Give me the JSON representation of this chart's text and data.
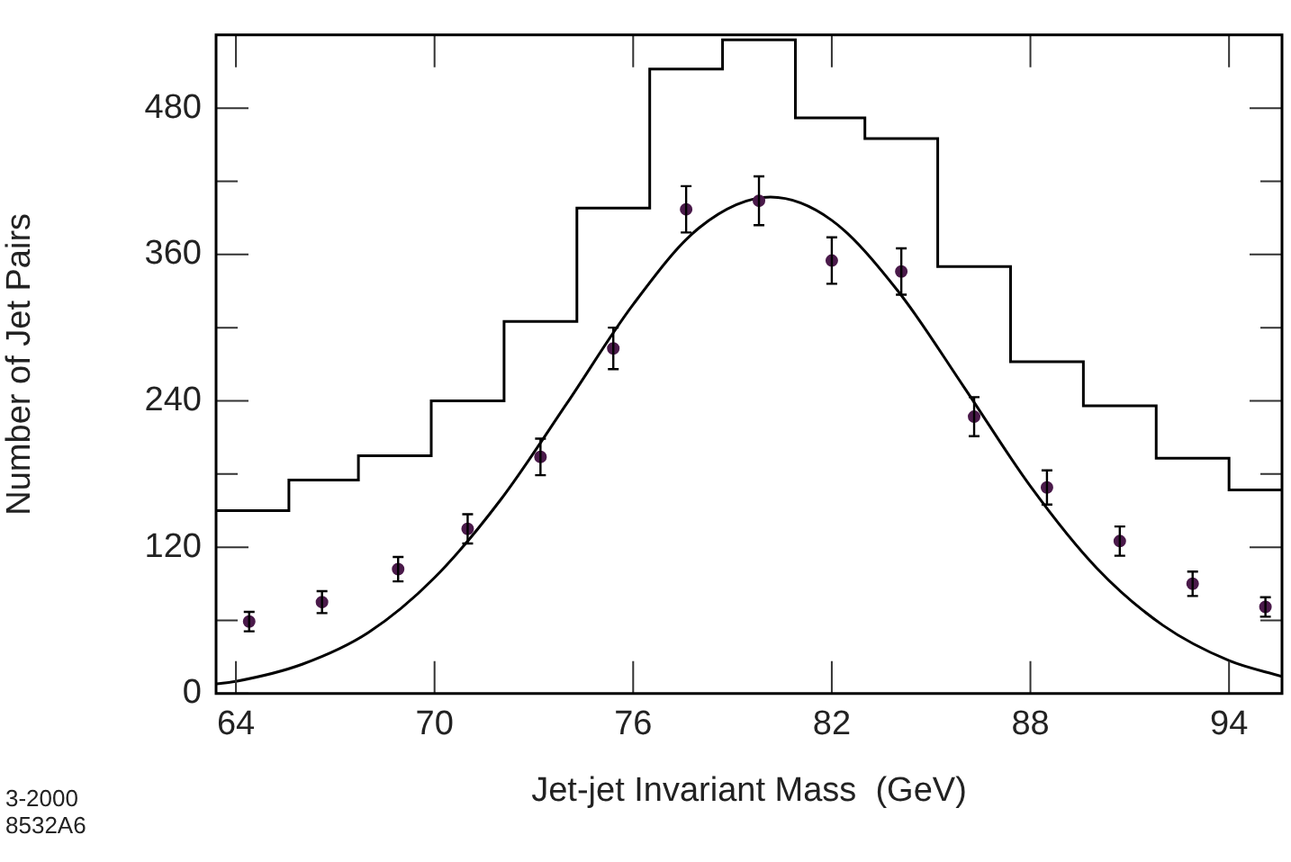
{
  "chart_data": {
    "type": "scatter",
    "xlabel": "Jet-jet Invariant Mass  (GeV)",
    "ylabel": "Number of Jet Pairs",
    "xlim": [
      63.4,
      95.6
    ],
    "xticks": [
      64,
      70,
      76,
      82,
      88,
      94
    ],
    "ylim": [
      0,
      540
    ],
    "yticks": [
      0,
      {
        "value": 60,
        "label": null
      },
      120,
      {
        "value": 180,
        "label": null
      },
      240,
      {
        "value": 300,
        "label": null
      },
      360,
      {
        "value": 420,
        "label": null
      },
      480
    ],
    "annotations": [
      "3-2000",
      "8532A6"
    ],
    "series": [
      {
        "type": "step",
        "color": "#000000",
        "x": [
          63.4,
          65.6,
          67.7,
          69.9,
          72.1,
          74.3,
          76.5,
          78.7,
          80.9,
          83.0,
          85.2,
          87.4,
          89.6,
          91.8,
          94.0,
          95.6
        ],
        "values": [
          150,
          175,
          195,
          240,
          305,
          398,
          512,
          536,
          472,
          455,
          350,
          272,
          236,
          193,
          167,
          167
        ]
      },
      {
        "color": "#4a1a4a",
        "marker": "circle",
        "x": [
          64.4,
          66.6,
          68.9,
          71.0,
          73.2,
          75.4,
          77.6,
          79.8,
          82.0,
          84.1,
          86.3,
          88.5,
          90.7,
          92.9,
          95.1
        ],
        "values": [
          59,
          75,
          102,
          135,
          194,
          283,
          397,
          404,
          355,
          346,
          227,
          169,
          125,
          90,
          71
        ],
        "errors": [
          8,
          9,
          10,
          12,
          15,
          17,
          19,
          20,
          19,
          19,
          16,
          14,
          12,
          10,
          8
        ]
      },
      {
        "type": "line",
        "color": "#000000",
        "x": [
          63.4,
          64,
          66,
          68,
          70,
          72,
          74,
          76,
          78,
          80.15,
          82,
          84,
          86,
          88,
          90,
          92,
          94,
          95.6
        ],
        "values": [
          8,
          10,
          24,
          50,
          95,
          159,
          238,
          319,
          382,
          407,
          388,
          330,
          251,
          170,
          103,
          56,
          27,
          14
        ]
      }
    ]
  }
}
